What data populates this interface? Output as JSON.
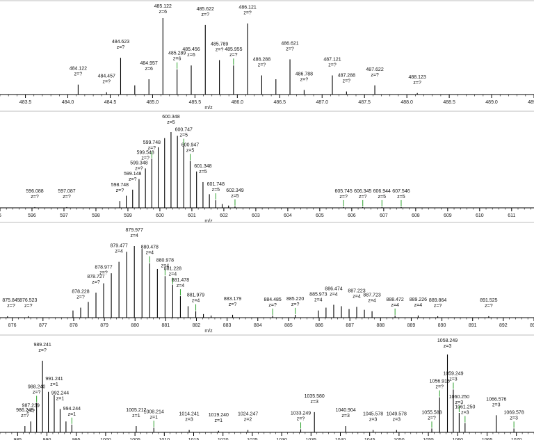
{
  "chart_data": [
    {
      "type": "bar",
      "xlabel": "m/z",
      "xlim": [
        483.2,
        489.5
      ],
      "ylim": [
        0,
        100
      ],
      "grid": false,
      "xticks": [
        "483.5",
        "484.0",
        "484.5",
        "485.0",
        "485.5",
        "486.0",
        "486.5",
        "487.0",
        "487.5",
        "488.0",
        "488.5",
        "489.0",
        "489.5"
      ],
      "peaks": [
        {
          "mz": 484.122,
          "y": 13,
          "label": "484.122",
          "charge": "z=?"
        },
        {
          "mz": 484.457,
          "y": 3,
          "label": "484.457",
          "charge": "z=?"
        },
        {
          "mz": 484.623,
          "y": 48,
          "label": "484.623",
          "charge": "z=?"
        },
        {
          "mz": 484.79,
          "y": 12
        },
        {
          "mz": 484.957,
          "y": 20,
          "label": "484.957",
          "charge": "z=6"
        },
        {
          "mz": 485.122,
          "y": 100,
          "label": "485.122",
          "charge": "z=6"
        },
        {
          "mz": 485.289,
          "y": 33,
          "label": "485.289",
          "charge": "z=6",
          "green": true
        },
        {
          "mz": 485.456,
          "y": 38,
          "label": "485.456",
          "charge": "z=6"
        },
        {
          "mz": 485.622,
          "y": 91,
          "label": "485.622",
          "charge": "z=?"
        },
        {
          "mz": 485.789,
          "y": 45,
          "label": "485.789",
          "charge": "z=?"
        },
        {
          "mz": 485.955,
          "y": 38,
          "label": "485.955",
          "charge": "z=?",
          "green": true
        },
        {
          "mz": 486.121,
          "y": 93,
          "label": "486.121",
          "charge": "z=?"
        },
        {
          "mz": 486.288,
          "y": 25,
          "label": "486.288",
          "charge": "z=?"
        },
        {
          "mz": 486.455,
          "y": 20
        },
        {
          "mz": 486.621,
          "y": 46,
          "label": "486.621",
          "charge": "z=?"
        },
        {
          "mz": 486.788,
          "y": 6,
          "label": "486.788",
          "charge": "z=?"
        },
        {
          "mz": 487.121,
          "y": 25,
          "label": "487.121",
          "charge": "z=?"
        },
        {
          "mz": 487.288,
          "y": 4,
          "label": "487.288",
          "charge": "z=?"
        },
        {
          "mz": 487.622,
          "y": 12,
          "label": "487.622",
          "charge": "z=?"
        },
        {
          "mz": 488.123,
          "y": 2,
          "label": "488.123",
          "charge": "z=?"
        }
      ]
    },
    {
      "type": "bar",
      "xlabel": "m/z",
      "xlim": [
        595.0,
        611.7
      ],
      "ylim": [
        0,
        100
      ],
      "grid": false,
      "xticks": [
        "5",
        "596",
        "597",
        "598",
        "599",
        "600",
        "601",
        "602",
        "603",
        "604",
        "605",
        "606",
        "607",
        "608",
        "609",
        "610",
        "611"
      ],
      "peaks": [
        {
          "mz": 596.088,
          "y": 1,
          "label": "596.088",
          "charge": "z=?"
        },
        {
          "mz": 597.087,
          "y": 1,
          "label": "597.087",
          "charge": "z=?"
        },
        {
          "mz": 598.748,
          "y": 9,
          "label": "598.748",
          "charge": "z=?"
        },
        {
          "mz": 598.948,
          "y": 16
        },
        {
          "mz": 599.148,
          "y": 24,
          "label": "599.148",
          "charge": "z=?"
        },
        {
          "mz": 599.348,
          "y": 38,
          "label": "599.348",
          "charge": "z=?"
        },
        {
          "mz": 599.548,
          "y": 52,
          "label": "599.548",
          "charge": "z=?"
        },
        {
          "mz": 599.748,
          "y": 65,
          "label": "599.748",
          "charge": "z=?",
          "green": true
        },
        {
          "mz": 599.948,
          "y": 80
        },
        {
          "mz": 600.148,
          "y": 92
        },
        {
          "mz": 600.348,
          "y": 100,
          "label": "600.348",
          "charge": "z=5"
        },
        {
          "mz": 600.548,
          "y": 95
        },
        {
          "mz": 600.747,
          "y": 82,
          "label": "600.747",
          "charge": "z=5",
          "green": true
        },
        {
          "mz": 600.947,
          "y": 62,
          "label": "600.947",
          "charge": "z=5",
          "green": true
        },
        {
          "mz": 601.147,
          "y": 48
        },
        {
          "mz": 601.348,
          "y": 34,
          "label": "601.348",
          "charge": "z=5"
        },
        {
          "mz": 601.548,
          "y": 18
        },
        {
          "mz": 601.748,
          "y": 10,
          "label": "601.748",
          "charge": "z=5",
          "green": true
        },
        {
          "mz": 601.948,
          "y": 5
        },
        {
          "mz": 602.148,
          "y": 3
        },
        {
          "mz": 602.349,
          "y": 2,
          "label": "602.349",
          "charge": "z=5",
          "green": true
        },
        {
          "mz": 605.745,
          "y": 1,
          "label": "605.745",
          "charge": "z=?",
          "green": true
        },
        {
          "mz": 606.345,
          "y": 1,
          "label": "606.345",
          "charge": "z=?",
          "green": true
        },
        {
          "mz": 606.944,
          "y": 1,
          "label": "606.944",
          "charge": "z=5",
          "green": true
        },
        {
          "mz": 607.546,
          "y": 1,
          "label": "607.546",
          "charge": "z=5",
          "green": true
        }
      ]
    },
    {
      "type": "bar",
      "xlabel": "m/z",
      "xlim": [
        875.6,
        893.0
      ],
      "ylim": [
        0,
        100
      ],
      "grid": false,
      "xticks": [
        "876",
        "877",
        "878",
        "879",
        "880",
        "881",
        "882",
        "883",
        "884",
        "885",
        "886",
        "887",
        "888",
        "889",
        "890",
        "891",
        "892",
        "893"
      ],
      "peaks": [
        {
          "mz": 875.845,
          "y": 2,
          "label": "875.845",
          "charge": "z=?"
        },
        {
          "mz": 876.523,
          "y": 2,
          "label": "876.523",
          "charge": "z=?"
        },
        {
          "mz": 877.978,
          "y": 10
        },
        {
          "mz": 878.228,
          "y": 14,
          "label": "878.228",
          "charge": "z=?"
        },
        {
          "mz": 878.477,
          "y": 22
        },
        {
          "mz": 878.727,
          "y": 35,
          "label": "878.727",
          "charge": "z=?"
        },
        {
          "mz": 878.977,
          "y": 48,
          "label": "878.977",
          "charge": "z=?"
        },
        {
          "mz": 879.227,
          "y": 62
        },
        {
          "mz": 879.477,
          "y": 78,
          "label": "879.477",
          "charge": "z=4"
        },
        {
          "mz": 879.727,
          "y": 92
        },
        {
          "mz": 879.977,
          "y": 100,
          "label": "879.977",
          "charge": "z=4"
        },
        {
          "mz": 880.227,
          "y": 96
        },
        {
          "mz": 880.478,
          "y": 76,
          "label": "880.478",
          "charge": "z=4",
          "green": true
        },
        {
          "mz": 880.728,
          "y": 68
        },
        {
          "mz": 880.978,
          "y": 58,
          "label": "880.978",
          "charge": "z=4",
          "green": true
        },
        {
          "mz": 881.228,
          "y": 46,
          "label": "881.228",
          "charge": "z=4",
          "green": true
        },
        {
          "mz": 881.478,
          "y": 30,
          "label": "881.478",
          "charge": "z=4",
          "green": true
        },
        {
          "mz": 881.728,
          "y": 16
        },
        {
          "mz": 881.979,
          "y": 9,
          "label": "881.979",
          "charge": "z=4",
          "green": true
        },
        {
          "mz": 882.229,
          "y": 5
        },
        {
          "mz": 882.479,
          "y": 3
        },
        {
          "mz": 883.179,
          "y": 4,
          "label": "883.179",
          "charge": "z=?"
        },
        {
          "mz": 884.485,
          "y": 3,
          "label": "884.485",
          "charge": "z=?",
          "green": true
        },
        {
          "mz": 885.22,
          "y": 4,
          "label": "885.220",
          "charge": "z=?",
          "green": true
        },
        {
          "mz": 885.973,
          "y": 10,
          "label": "885.973",
          "charge": "z=4"
        },
        {
          "mz": 886.223,
          "y": 14
        },
        {
          "mz": 886.474,
          "y": 18,
          "label": "886.474",
          "charge": "z=4"
        },
        {
          "mz": 886.724,
          "y": 16
        },
        {
          "mz": 886.974,
          "y": 12
        },
        {
          "mz": 887.223,
          "y": 15,
          "label": "887.223",
          "charge": "z=4"
        },
        {
          "mz": 887.473,
          "y": 11
        },
        {
          "mz": 887.723,
          "y": 9,
          "label": "887.723",
          "charge": "z=4"
        },
        {
          "mz": 888.472,
          "y": 3,
          "label": "888.472",
          "charge": "z=4",
          "green": true
        },
        {
          "mz": 889.226,
          "y": 3,
          "label": "889.226",
          "charge": "z=4"
        },
        {
          "mz": 889.864,
          "y": 2,
          "label": "889.864",
          "charge": "z=?"
        },
        {
          "mz": 891.525,
          "y": 2,
          "label": "891.525",
          "charge": "z=?"
        }
      ]
    },
    {
      "type": "bar",
      "xlabel": "",
      "xlim": [
        982.0,
        1073.0
      ],
      "ylim": [
        0,
        100
      ],
      "grid": false,
      "xticks": [
        "985",
        "990",
        "995",
        "1000",
        "1005",
        "1010",
        "1015",
        "1020",
        "1025",
        "1030",
        "1035",
        "1040",
        "1045",
        "1050",
        "1055",
        "1060",
        "1065",
        "1070"
      ],
      "peaks": [
        {
          "mz": 986.245,
          "y": 8,
          "label": "986.245",
          "charge": "z=?"
        },
        {
          "mz": 987.239,
          "y": 14,
          "label": "987.239",
          "charge": "z=?"
        },
        {
          "mz": 988.24,
          "y": 38,
          "label": "988.240",
          "charge": "z=?",
          "green": true
        },
        {
          "mz": 989.241,
          "y": 92,
          "label": "989.241",
          "charge": "z=?"
        },
        {
          "mz": 990.241,
          "y": 52
        },
        {
          "mz": 991.241,
          "y": 48,
          "label": "991.241",
          "charge": "z=1"
        },
        {
          "mz": 992.244,
          "y": 30,
          "label": "992.244",
          "charge": "z=1"
        },
        {
          "mz": 993.244,
          "y": 14
        },
        {
          "mz": 994.244,
          "y": 10,
          "label": "994.244",
          "charge": "z=1",
          "green": true
        },
        {
          "mz": 1005.212,
          "y": 8,
          "label": "1005.212",
          "charge": "z=1"
        },
        {
          "mz": 1008.214,
          "y": 6,
          "label": "1008.214",
          "charge": "z=1",
          "green": true
        },
        {
          "mz": 1014.241,
          "y": 3,
          "label": "1014.241",
          "charge": "z=3"
        },
        {
          "mz": 1019.24,
          "y": 2,
          "label": "1019.240",
          "charge": "z=1"
        },
        {
          "mz": 1024.247,
          "y": 3,
          "label": "1024.247",
          "charge": "z=2"
        },
        {
          "mz": 1033.249,
          "y": 4,
          "label": "1033.249",
          "charge": "z=?",
          "green": true
        },
        {
          "mz": 1035.58,
          "y": 26,
          "label": "1035.580",
          "charge": "z=3"
        },
        {
          "mz": 1040.904,
          "y": 8,
          "label": "1040.904",
          "charge": "z=3"
        },
        {
          "mz": 1045.578,
          "y": 3,
          "label": "1045.578",
          "charge": "z=3"
        },
        {
          "mz": 1049.578,
          "y": 3,
          "label": "1049.578",
          "charge": "z=3"
        },
        {
          "mz": 1055.583,
          "y": 5,
          "label": "1055.583",
          "charge": "z=?",
          "green": true
        },
        {
          "mz": 1056.916,
          "y": 45,
          "label": "1056.916",
          "charge": "z=?",
          "green": true
        },
        {
          "mz": 1058.249,
          "y": 100,
          "label": "1058.249",
          "charge": "z=3"
        },
        {
          "mz": 1059.249,
          "y": 55,
          "label": "1059.249",
          "charge": "z=3",
          "green": true
        },
        {
          "mz": 1060.25,
          "y": 25,
          "label": "1060.250",
          "charge": "z=3",
          "green": true
        },
        {
          "mz": 1061.25,
          "y": 12,
          "label": "1061.250",
          "charge": "z=3",
          "green": true
        },
        {
          "mz": 1066.576,
          "y": 22,
          "label": "1066.576",
          "charge": "z=3"
        },
        {
          "mz": 1069.578,
          "y": 5,
          "label": "1069.578",
          "charge": "z=3",
          "green": true
        }
      ]
    }
  ]
}
